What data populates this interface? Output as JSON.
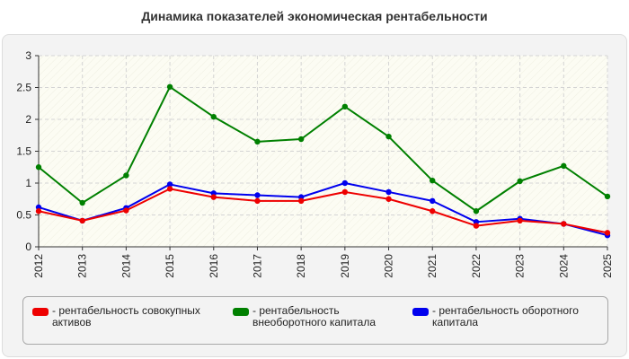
{
  "chart_data": {
    "type": "line",
    "title": "Динамика показателей экономическая рентабельности",
    "xlabel": "",
    "ylabel": "",
    "x": [
      "2012",
      "2013",
      "2014",
      "2015",
      "2016",
      "2017",
      "2018",
      "2019",
      "2020",
      "2021",
      "2022",
      "2023",
      "2024",
      "2025"
    ],
    "ylim": [
      0,
      3
    ],
    "yticks": [
      "0",
      "0.5",
      "1",
      "1.5",
      "2",
      "2.5",
      "3"
    ],
    "grid": true,
    "legend_position": "bottom",
    "series": [
      {
        "name": "- рентабельность совокупных активов",
        "color": "#ee0000",
        "values": [
          0.56,
          0.41,
          0.57,
          0.91,
          0.78,
          0.72,
          0.72,
          0.86,
          0.75,
          0.56,
          0.33,
          0.41,
          0.36,
          0.22
        ]
      },
      {
        "name": "- рентабельность внеоборотного капитала",
        "color": "#008000",
        "values": [
          1.25,
          0.69,
          1.12,
          2.51,
          2.04,
          1.65,
          1.69,
          2.2,
          1.73,
          1.04,
          0.56,
          1.03,
          1.27,
          0.79
        ]
      },
      {
        "name": "- рентабельность оборотного капитала",
        "color": "#0000ee",
        "values": [
          0.62,
          0.41,
          0.61,
          0.98,
          0.84,
          0.81,
          0.78,
          1.0,
          0.86,
          0.72,
          0.39,
          0.44,
          0.36,
          0.18
        ]
      }
    ]
  }
}
